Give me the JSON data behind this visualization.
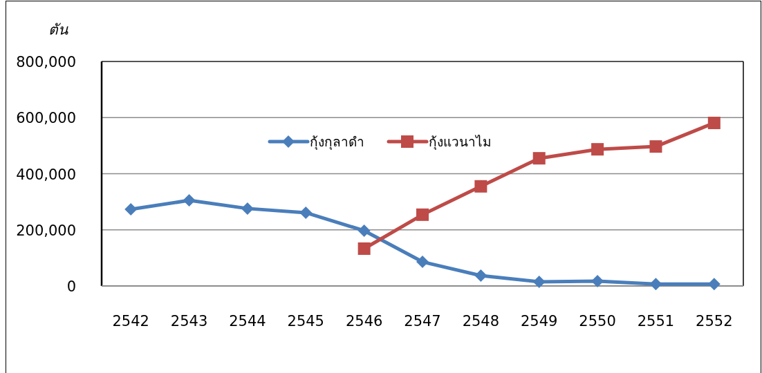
{
  "chart_data": {
    "type": "line",
    "ylabel": "ตัน",
    "categories": [
      "2542",
      "2543",
      "2544",
      "2545",
      "2546",
      "2547",
      "2548",
      "2549",
      "2550",
      "2551",
      "2552"
    ],
    "series": [
      {
        "name": "กุ้งกุลาดำ",
        "color": "#4a7ebb",
        "marker": "diamond",
        "values": [
          273000,
          305000,
          276000,
          261000,
          197000,
          86000,
          37000,
          15000,
          17000,
          7000,
          7000
        ]
      },
      {
        "name": "กุ้งแวนาไม",
        "color": "#be4b48",
        "marker": "square",
        "values": [
          null,
          null,
          null,
          null,
          133000,
          254000,
          355000,
          455000,
          487000,
          497000,
          581000
        ]
      }
    ],
    "ylim": [
      0,
      800000
    ],
    "yticks": [
      0,
      {
        "value": 200000,
        "label": "200,000"
      },
      {
        "value": 400000,
        "label": "400,000"
      },
      {
        "value": 600000,
        "label": "600,000"
      },
      {
        "value": 800000,
        "label": "800,000"
      }
    ],
    "grid": "y",
    "legend": "top",
    "line_style": "solid"
  }
}
